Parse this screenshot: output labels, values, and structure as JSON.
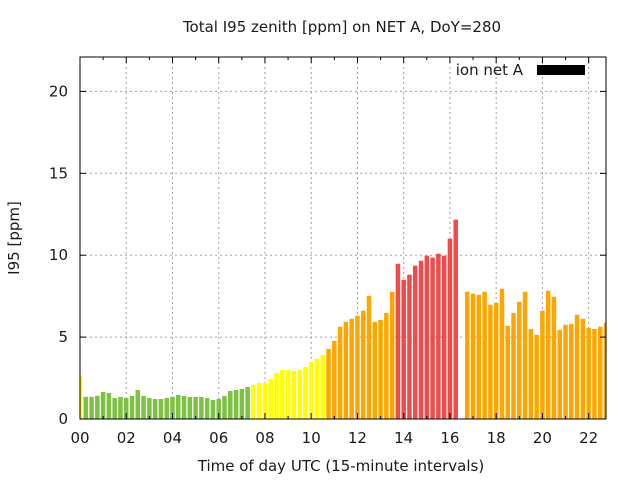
{
  "chart_data": {
    "type": "bar",
    "title": "Total I95 zenith [ppm] on NET A, DoY=280",
    "xlabel": "Time of day UTC (15-minute intervals)",
    "ylabel": "I95 [ppm]",
    "xlim": [
      0,
      22.75
    ],
    "ylim": [
      0,
      22.1
    ],
    "grid": true,
    "legend_position": "top-right",
    "x_tick_values": [
      0,
      2,
      4,
      6,
      8,
      10,
      12,
      14,
      16,
      18,
      20,
      22
    ],
    "x_tick_labels": [
      "00",
      "02",
      "04",
      "06",
      "08",
      "10",
      "12",
      "14",
      "16",
      "18",
      "20",
      "22"
    ],
    "y_tick_values": [
      0,
      5,
      10,
      15,
      20
    ],
    "y_tick_labels": [
      "0",
      "5",
      "10",
      "15",
      "20"
    ],
    "bar_step_hours": 0.25,
    "series": [
      {
        "name": "ion net A",
        "legend_color": "#000000",
        "values": [
          2.65,
          1.35,
          1.35,
          1.42,
          1.65,
          1.59,
          1.28,
          1.35,
          1.28,
          1.41,
          1.77,
          1.41,
          1.28,
          1.22,
          1.22,
          1.28,
          1.35,
          1.47,
          1.41,
          1.35,
          1.35,
          1.35,
          1.28,
          1.16,
          1.22,
          1.41,
          1.71,
          1.77,
          1.84,
          1.96,
          2.08,
          2.2,
          2.2,
          2.45,
          2.81,
          2.99,
          2.99,
          2.93,
          2.99,
          3.18,
          3.48,
          3.67,
          3.91,
          4.28,
          4.77,
          5.63,
          5.93,
          6.12,
          6.3,
          6.61,
          7.52,
          5.93,
          6.05,
          6.48,
          7.77,
          9.48,
          8.5,
          8.81,
          9.36,
          9.66,
          9.97,
          9.85,
          10.09,
          9.97,
          11.01,
          12.17,
          null,
          7.77,
          7.65,
          7.58,
          7.77,
          6.97,
          7.09,
          7.95,
          5.69,
          6.48,
          7.15,
          7.77,
          5.5,
          5.14,
          6.61,
          7.83,
          7.46,
          5.44,
          5.75,
          5.81,
          6.36,
          6.12,
          5.57,
          5.5,
          5.63,
          5.87
        ]
      }
    ],
    "color_scale": [
      {
        "min": 0,
        "max": 2,
        "color": "#7dc243"
      },
      {
        "min": 2,
        "max": 4,
        "color": "#ffff00"
      },
      {
        "min": 4,
        "max": 8,
        "color": "#ffa500"
      },
      {
        "min": 8,
        "max": 100,
        "color": "#f04a4a"
      }
    ]
  }
}
